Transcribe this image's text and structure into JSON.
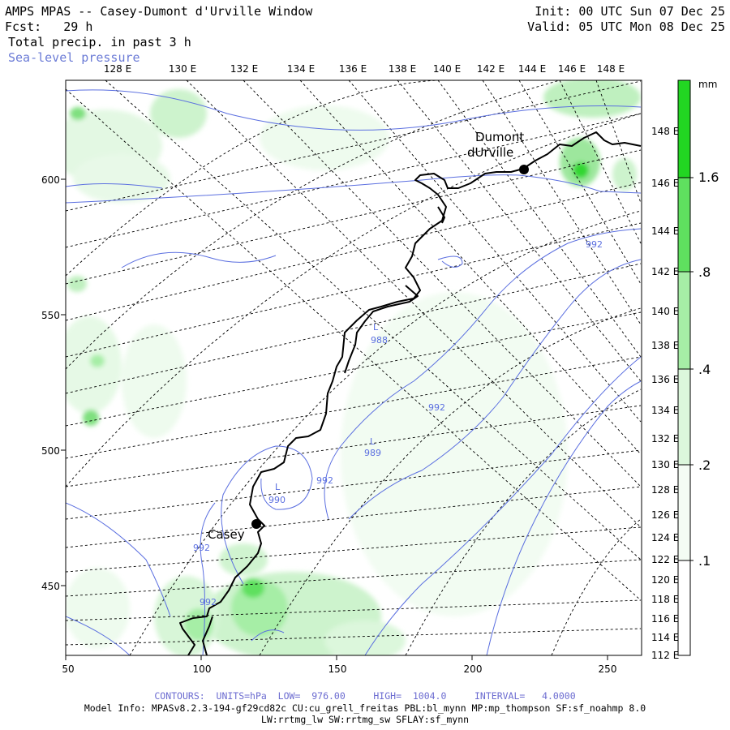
{
  "header": {
    "title": "AMPS MPAS -- Casey-Dumont d'Urville Window",
    "fcst": "Fcst:   29 h",
    "field": "Total precip. in past 3 h",
    "overlay": "Sea-level pressure",
    "init": "Init: 00 UTC Sun 07 Dec 25",
    "valid": "Valid: 05 UTC Mon 08 Dec 25"
  },
  "colorbar": {
    "unit": "mm",
    "labels": [
      ".1",
      ".2",
      ".4",
      ".8",
      "1.6"
    ],
    "colors": [
      "#ffffff",
      "#dcf7dc",
      "#a6eea6",
      "#5fe05f",
      "#22d622"
    ]
  },
  "axes": {
    "top_ticks": [
      "128 E",
      "130 E",
      "132 E",
      "134 E",
      "136 E",
      "138 E",
      "140 E",
      "142 E",
      "144 E",
      "146 E",
      "148 E"
    ],
    "right_ticks": [
      "148 E",
      "146 E",
      "144 E",
      "142 E",
      "140 E",
      "138 E",
      "136 E",
      "134 E",
      "132 E",
      "130 E",
      "128 E",
      "126 E",
      "124 E",
      "122 E",
      "120 E",
      "118 E",
      "116 E",
      "114 E",
      "112 E"
    ],
    "left_ticks": [
      "600",
      "550",
      "500",
      "450"
    ],
    "bottom_ticks": [
      "50",
      "100",
      "150",
      "200",
      "250"
    ]
  },
  "stations": {
    "dumont": {
      "line1": "Dumont",
      "line2": "dUrville"
    },
    "casey": {
      "name": "Casey"
    }
  },
  "pressure": {
    "lows": [
      {
        "mark": "L",
        "value": "990"
      },
      {
        "mark": "L",
        "value": "989"
      },
      {
        "mark": "L",
        "value": "988"
      }
    ],
    "contour_labels": [
      "992",
      "992",
      "992",
      "992",
      "992",
      "992"
    ]
  },
  "footer": {
    "contours": "CONTOURS:  UNITS=hPa  LOW=  976.00     HIGH=  1004.0     INTERVAL=   4.0000",
    "model": "Model Info: MPASv8.2.3-194-gf29cd82c CU:cu_grell_freitas PBL:bl_mynn MP:mp_thompson SF:sf_noahmp 8.0",
    "model2": "LW:rrtmg_lw SW:rrtmg_sw SFLAY:sf_mynn"
  }
}
